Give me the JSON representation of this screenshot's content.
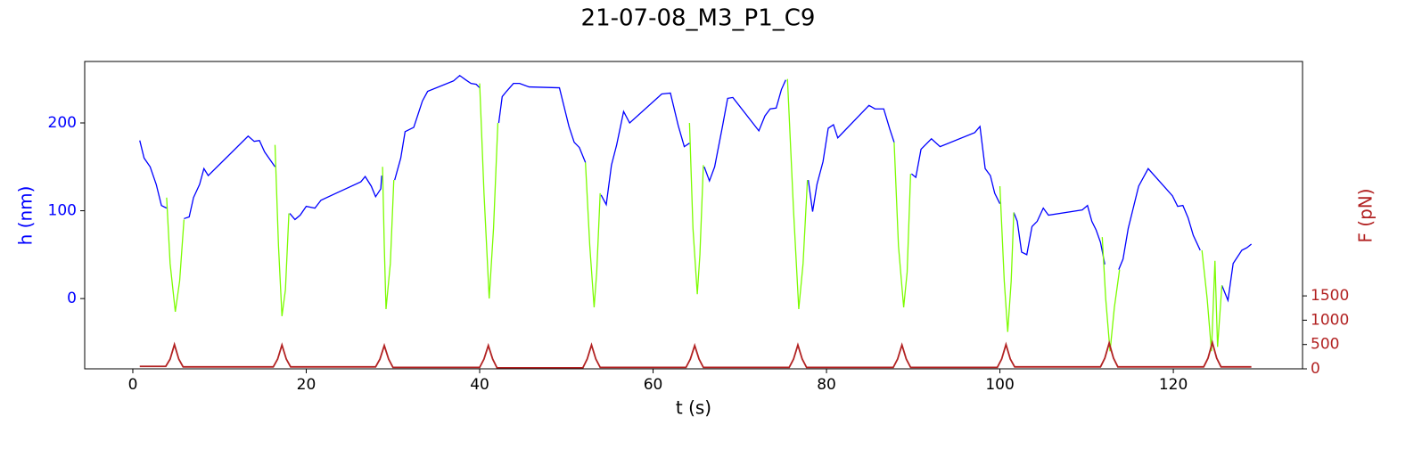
{
  "chart_data": {
    "type": "line",
    "title": "21-07-08_M3_P1_C9",
    "xlabel": "t (s)",
    "ylabel": "h (nm)",
    "y2label": "F (pN)",
    "xlim": [
      -5.55,
      134.9
    ],
    "xticks": [
      0,
      20,
      40,
      60,
      80,
      100,
      120
    ],
    "ylim": [
      -80,
      270
    ],
    "yticks": [
      0,
      100,
      200
    ],
    "y2lim": [
      0,
      6320
    ],
    "y2ticks": [
      0,
      500,
      1000,
      1500
    ],
    "series": [
      {
        "color": "#0000ff",
        "x": [
          0.8,
          1.3,
          2,
          2.7,
          3.3,
          3.9,
          null,
          5.9,
          6.5,
          7,
          7.7,
          8.2,
          8.7,
          13.3,
          14,
          14.6,
          15.2,
          16.4,
          null,
          18.1,
          18.7,
          19.3,
          20,
          21,
          21.7,
          26.3,
          26.8,
          27.5,
          28,
          28.6,
          28.7,
          null,
          30.2,
          30.9,
          31.4,
          32.4,
          33.4,
          34,
          37,
          37.7,
          38.4,
          39,
          39.6,
          40,
          null,
          42.2,
          42.6,
          43.1,
          43.9,
          44.6,
          45.7,
          49.2,
          50.3,
          50.9,
          51.5,
          52.2,
          null,
          54,
          54.6,
          55.2,
          55.8,
          56.6,
          57.3,
          61,
          62,
          62.9,
          63.6,
          64.2,
          null,
          65.9,
          66.5,
          67.1,
          68,
          68.6,
          69.2,
          72.2,
          72.9,
          73.5,
          74.2,
          74.8,
          75.3,
          null,
          77.9,
          78.4,
          78.9,
          79.6,
          80.2,
          80.8,
          81.3,
          84.9,
          85.6,
          86.6,
          87.3,
          87.8,
          null,
          89.8,
          90.3,
          90.9,
          92.1,
          93.1,
          97.1,
          97.7,
          98.3,
          98.9,
          99.4,
          100,
          null,
          101.6,
          102,
          102.5,
          103.1,
          103.7,
          104.3,
          105,
          105.6,
          109.5,
          110.1,
          110.6,
          111.1,
          111.6,
          112.1,
          null,
          113.7,
          114.2,
          114.8,
          116,
          117.1,
          119.9,
          120.5,
          121.1,
          121.7,
          122.3,
          123.1,
          null,
          125.6,
          126.3,
          126.9,
          127.9,
          128.5,
          129
        ],
        "values": [
          180,
          160,
          150,
          130,
          106,
          103,
          null,
          91,
          93,
          115,
          130,
          148,
          140,
          185,
          179,
          180,
          167,
          150,
          null,
          97,
          90,
          95,
          105,
          103,
          112,
          133,
          139,
          128,
          116,
          125,
          140,
          null,
          135,
          160,
          190,
          195,
          225,
          236,
          248,
          254,
          249,
          245,
          244,
          240,
          null,
          200,
          230,
          236,
          245,
          245,
          241,
          240,
          196,
          178,
          172,
          155,
          null,
          118,
          107,
          152,
          175,
          213,
          200,
          233,
          234,
          197,
          173,
          177,
          null,
          150,
          134,
          150,
          196,
          228,
          229,
          191,
          208,
          216,
          217,
          238,
          249,
          null,
          135,
          99,
          130,
          156,
          194,
          198,
          183,
          220,
          216,
          216,
          193,
          178,
          null,
          142,
          138,
          170,
          182,
          173,
          189,
          196,
          148,
          140,
          120,
          108,
          null,
          98,
          88,
          53,
          50,
          82,
          88,
          103,
          95,
          101,
          106,
          88,
          78,
          64,
          39,
          null,
          33,
          45,
          80,
          128,
          148,
          117,
          105,
          106,
          92,
          72,
          55,
          null,
          15,
          -2,
          40,
          55,
          58,
          62
        ]
      },
      {
        "color": "#7cfc00",
        "x": [
          3.9,
          4.3,
          4.9,
          5.4,
          5.9,
          null,
          16.4,
          16.8,
          17.2,
          17.6,
          18,
          null,
          28.8,
          29,
          29.2,
          29.7,
          30.1,
          null,
          40,
          40.5,
          41.1,
          41.6,
          42.1,
          null,
          52.2,
          52.7,
          53.2,
          53.5,
          53.9,
          null,
          64.2,
          64.6,
          65.1,
          65.4,
          65.8,
          null,
          75.5,
          76.2,
          76.8,
          77.3,
          77.8,
          null,
          87.8,
          88.3,
          88.9,
          89.3,
          89.7,
          null,
          100,
          100.5,
          100.9,
          101.3,
          101.6,
          null,
          111.8,
          112.2,
          112.7,
          113.2,
          113.8,
          null,
          123.3,
          123.9,
          124.4,
          124.8,
          125.1,
          125.6
        ],
        "values": [
          115,
          40,
          -15,
          20,
          90,
          null,
          175,
          60,
          -20,
          10,
          97,
          null,
          150,
          60,
          -12,
          40,
          135,
          null,
          245,
          120,
          0,
          80,
          200,
          null,
          155,
          60,
          -10,
          30,
          120,
          null,
          200,
          80,
          5,
          50,
          152,
          null,
          250,
          100,
          -12,
          40,
          135,
          null,
          178,
          60,
          -10,
          30,
          142,
          null,
          128,
          20,
          -38,
          20,
          98,
          null,
          70,
          0,
          -60,
          -10,
          33,
          null,
          55,
          0,
          -60,
          43,
          -55,
          15
        ]
      },
      {
        "color": "#b22222",
        "axis": "y2",
        "x": [
          0.8,
          3.8,
          4.3,
          4.8,
          5.3,
          5.8,
          16.2,
          16.7,
          17.2,
          17.7,
          18.2,
          28,
          28.5,
          29,
          29.5,
          30,
          40,
          40.5,
          41,
          41.5,
          42,
          51.9,
          52.4,
          52.9,
          53.4,
          53.9,
          63.8,
          64.3,
          64.8,
          65.3,
          65.8,
          75.7,
          76.2,
          76.7,
          77.2,
          77.7,
          87.7,
          88.2,
          88.7,
          89.2,
          89.7,
          99.7,
          100.2,
          100.7,
          101.2,
          101.7,
          111.6,
          112.1,
          112.6,
          113.1,
          113.6,
          123.5,
          124,
          124.5,
          125,
          125.5,
          129
        ],
        "values": [
          50,
          50,
          200,
          500,
          200,
          40,
          40,
          200,
          490,
          200,
          40,
          40,
          200,
          480,
          200,
          30,
          30,
          200,
          480,
          200,
          20,
          20,
          200,
          490,
          200,
          30,
          30,
          200,
          480,
          200,
          30,
          30,
          200,
          490,
          200,
          30,
          30,
          200,
          490,
          200,
          30,
          30,
          200,
          500,
          200,
          40,
          40,
          220,
          530,
          220,
          40,
          40,
          220,
          540,
          220,
          40,
          40
        ]
      }
    ]
  }
}
